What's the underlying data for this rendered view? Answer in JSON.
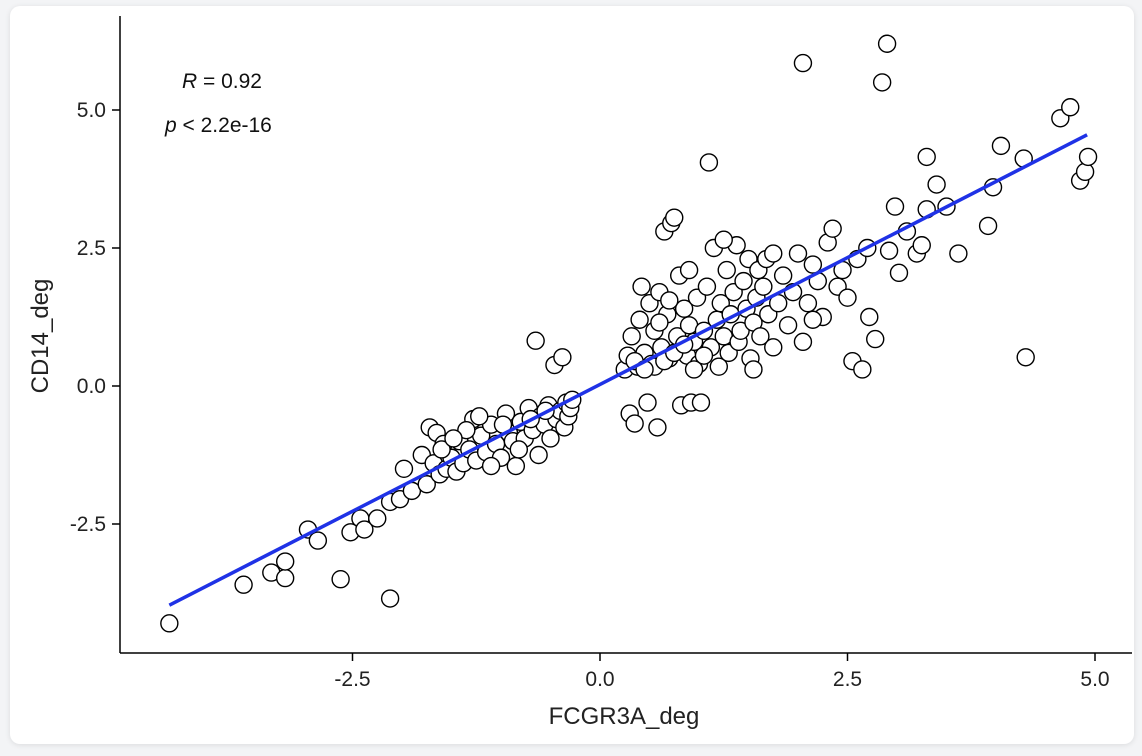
{
  "chart_data": {
    "type": "scatter",
    "xlabel": "FCGR3A_deg",
    "ylabel": "CD14_deg",
    "xlim": [
      -4.5,
      5.2
    ],
    "ylim": [
      -4.8,
      6.5
    ],
    "xticks": [
      -2.5,
      0.0,
      2.5,
      5.0
    ],
    "yticks": [
      -2.5,
      0.0,
      2.5,
      5.0
    ],
    "tick_labels_x": [
      "-2.5",
      "0.0",
      "2.5",
      "5.0"
    ],
    "tick_labels_y": [
      "-2.5",
      "0.0",
      "2.5",
      "5.0"
    ],
    "grid": false,
    "annotation": {
      "r_symbol": "R",
      "r_value": " = 0.92",
      "p_symbol": "p",
      "p_value": " < 2.2e-16"
    },
    "regression": {
      "x": [
        -4.35,
        4.92
      ],
      "y": [
        -3.97,
        4.55
      ],
      "color": "#1f32e6"
    },
    "points": [
      {
        "x": -4.35,
        "y": -4.3
      },
      {
        "x": -3.6,
        "y": -3.6
      },
      {
        "x": -3.32,
        "y": -3.38
      },
      {
        "x": -3.18,
        "y": -3.48
      },
      {
        "x": -3.18,
        "y": -3.18
      },
      {
        "x": -2.95,
        "y": -2.6
      },
      {
        "x": -2.85,
        "y": -2.8
      },
      {
        "x": -2.62,
        "y": -3.5
      },
      {
        "x": -2.52,
        "y": -2.65
      },
      {
        "x": -2.42,
        "y": -2.4
      },
      {
        "x": -2.38,
        "y": -2.6
      },
      {
        "x": -2.25,
        "y": -2.4
      },
      {
        "x": -2.12,
        "y": -3.85
      },
      {
        "x": -2.12,
        "y": -2.1
      },
      {
        "x": -2.02,
        "y": -2.05
      },
      {
        "x": -1.98,
        "y": -1.5
      },
      {
        "x": -1.9,
        "y": -1.9
      },
      {
        "x": -1.8,
        "y": -1.25
      },
      {
        "x": -1.75,
        "y": -1.78
      },
      {
        "x": -1.72,
        "y": -0.75
      },
      {
        "x": -1.68,
        "y": -1.4
      },
      {
        "x": -1.65,
        "y": -0.85
      },
      {
        "x": -1.62,
        "y": -1.6
      },
      {
        "x": -1.58,
        "y": -1.05
      },
      {
        "x": -1.55,
        "y": -1.5
      },
      {
        "x": -1.5,
        "y": -1.3
      },
      {
        "x": -1.45,
        "y": -1.55
      },
      {
        "x": -1.42,
        "y": -1.0
      },
      {
        "x": -1.38,
        "y": -1.4
      },
      {
        "x": -1.32,
        "y": -1.15
      },
      {
        "x": -1.28,
        "y": -0.6
      },
      {
        "x": -1.25,
        "y": -1.35
      },
      {
        "x": -1.2,
        "y": -0.9
      },
      {
        "x": -1.15,
        "y": -1.2
      },
      {
        "x": -1.1,
        "y": -0.7
      },
      {
        "x": -1.05,
        "y": -1.05
      },
      {
        "x": -1.0,
        "y": -1.3
      },
      {
        "x": -0.95,
        "y": -0.5
      },
      {
        "x": -0.92,
        "y": -0.85
      },
      {
        "x": -0.88,
        "y": -1.0
      },
      {
        "x": -0.85,
        "y": -1.45
      },
      {
        "x": -0.8,
        "y": -0.65
      },
      {
        "x": -0.76,
        "y": -0.95
      },
      {
        "x": -0.72,
        "y": -0.4
      },
      {
        "x": -0.68,
        "y": -0.8
      },
      {
        "x": -0.65,
        "y": 0.82
      },
      {
        "x": -0.62,
        "y": -1.25
      },
      {
        "x": -0.6,
        "y": -0.55
      },
      {
        "x": -0.56,
        "y": -0.7
      },
      {
        "x": -0.52,
        "y": -0.35
      },
      {
        "x": -0.5,
        "y": -0.95
      },
      {
        "x": -0.46,
        "y": 0.38
      },
      {
        "x": -0.44,
        "y": -0.6
      },
      {
        "x": -0.4,
        "y": -0.45
      },
      {
        "x": -0.38,
        "y": 0.52
      },
      {
        "x": -0.36,
        "y": -0.75
      },
      {
        "x": -0.34,
        "y": -0.3
      },
      {
        "x": -0.32,
        "y": -0.55
      },
      {
        "x": -0.3,
        "y": -0.4
      },
      {
        "x": -0.28,
        "y": -0.25
      },
      {
        "x": -1.35,
        "y": -0.8
      },
      {
        "x": -1.1,
        "y": -1.45
      },
      {
        "x": -0.98,
        "y": -0.7
      },
      {
        "x": -0.82,
        "y": -1.15
      },
      {
        "x": -0.7,
        "y": -0.6
      },
      {
        "x": -0.55,
        "y": -0.45
      },
      {
        "x": -1.6,
        "y": -1.15
      },
      {
        "x": -1.48,
        "y": -0.95
      },
      {
        "x": -1.22,
        "y": -0.55
      },
      {
        "x": 0.25,
        "y": 0.3
      },
      {
        "x": 0.28,
        "y": 0.55
      },
      {
        "x": 0.3,
        "y": -0.5
      },
      {
        "x": 0.32,
        "y": 0.9
      },
      {
        "x": 0.35,
        "y": -0.68
      },
      {
        "x": 0.38,
        "y": 0.35
      },
      {
        "x": 0.4,
        "y": 1.2
      },
      {
        "x": 0.42,
        "y": 1.8
      },
      {
        "x": 0.45,
        "y": 0.6
      },
      {
        "x": 0.48,
        "y": -0.3
      },
      {
        "x": 0.5,
        "y": 1.5
      },
      {
        "x": 0.52,
        "y": 0.4
      },
      {
        "x": 0.55,
        "y": 1.0
      },
      {
        "x": 0.58,
        "y": -0.75
      },
      {
        "x": 0.6,
        "y": 1.7
      },
      {
        "x": 0.62,
        "y": 0.7
      },
      {
        "x": 0.65,
        "y": 2.8
      },
      {
        "x": 0.68,
        "y": 1.3
      },
      {
        "x": 0.7,
        "y": 0.5
      },
      {
        "x": 0.72,
        "y": 2.95
      },
      {
        "x": 0.75,
        "y": 3.05
      },
      {
        "x": 0.78,
        "y": 0.9
      },
      {
        "x": 0.8,
        "y": 2.0
      },
      {
        "x": 0.82,
        "y": -0.35
      },
      {
        "x": 0.85,
        "y": 1.4
      },
      {
        "x": 0.88,
        "y": 0.55
      },
      {
        "x": 0.9,
        "y": 1.1
      },
      {
        "x": 0.92,
        "y": -0.3
      },
      {
        "x": 0.95,
        "y": 0.8
      },
      {
        "x": 0.98,
        "y": 1.6
      },
      {
        "x": 1.0,
        "y": 0.4
      },
      {
        "x": 1.02,
        "y": -0.3
      },
      {
        "x": 1.05,
        "y": 1.0
      },
      {
        "x": 1.08,
        "y": 1.8
      },
      {
        "x": 1.1,
        "y": 4.05
      },
      {
        "x": 1.12,
        "y": 0.7
      },
      {
        "x": 1.15,
        "y": 2.5
      },
      {
        "x": 1.18,
        "y": 1.2
      },
      {
        "x": 1.2,
        "y": 0.35
      },
      {
        "x": 1.22,
        "y": 1.5
      },
      {
        "x": 1.25,
        "y": 0.9
      },
      {
        "x": 1.28,
        "y": 2.1
      },
      {
        "x": 1.3,
        "y": 0.6
      },
      {
        "x": 1.32,
        "y": 1.3
      },
      {
        "x": 1.35,
        "y": 1.7
      },
      {
        "x": 1.38,
        "y": 2.55
      },
      {
        "x": 1.4,
        "y": 0.8
      },
      {
        "x": 1.42,
        "y": 1.0
      },
      {
        "x": 1.45,
        "y": 1.9
      },
      {
        "x": 1.48,
        "y": 1.4
      },
      {
        "x": 1.5,
        "y": 2.3
      },
      {
        "x": 1.52,
        "y": 0.5
      },
      {
        "x": 1.55,
        "y": 1.15
      },
      {
        "x": 1.58,
        "y": 1.6
      },
      {
        "x": 1.6,
        "y": 2.1
      },
      {
        "x": 1.62,
        "y": 0.9
      },
      {
        "x": 1.65,
        "y": 1.8
      },
      {
        "x": 1.68,
        "y": 2.3
      },
      {
        "x": 1.7,
        "y": 1.3
      },
      {
        "x": 1.75,
        "y": 0.7
      },
      {
        "x": 1.8,
        "y": 1.5
      },
      {
        "x": 1.85,
        "y": 2.0
      },
      {
        "x": 1.9,
        "y": 1.1
      },
      {
        "x": 1.95,
        "y": 1.7
      },
      {
        "x": 2.0,
        "y": 2.4
      },
      {
        "x": 2.05,
        "y": 0.8
      },
      {
        "x": 2.05,
        "y": 5.85
      },
      {
        "x": 2.1,
        "y": 1.5
      },
      {
        "x": 2.15,
        "y": 2.2
      },
      {
        "x": 2.2,
        "y": 1.9
      },
      {
        "x": 2.25,
        "y": 1.25
      },
      {
        "x": 2.3,
        "y": 2.6
      },
      {
        "x": 2.35,
        "y": 2.85
      },
      {
        "x": 2.4,
        "y": 1.8
      },
      {
        "x": 2.45,
        "y": 2.1
      },
      {
        "x": 2.5,
        "y": 1.6
      },
      {
        "x": 2.55,
        "y": 0.45
      },
      {
        "x": 2.6,
        "y": 2.3
      },
      {
        "x": 2.65,
        "y": 0.3
      },
      {
        "x": 2.7,
        "y": 2.5
      },
      {
        "x": 2.72,
        "y": 1.25
      },
      {
        "x": 2.78,
        "y": 0.85
      },
      {
        "x": 2.85,
        "y": 5.5
      },
      {
        "x": 2.9,
        "y": 6.2
      },
      {
        "x": 2.92,
        "y": 2.45
      },
      {
        "x": 2.98,
        "y": 3.25
      },
      {
        "x": 3.02,
        "y": 2.05
      },
      {
        "x": 3.1,
        "y": 2.8
      },
      {
        "x": 3.2,
        "y": 2.4
      },
      {
        "x": 3.25,
        "y": 2.55
      },
      {
        "x": 3.3,
        "y": 4.15
      },
      {
        "x": 3.3,
        "y": 3.2
      },
      {
        "x": 3.4,
        "y": 3.65
      },
      {
        "x": 3.5,
        "y": 3.25
      },
      {
        "x": 3.62,
        "y": 2.4
      },
      {
        "x": 3.92,
        "y": 2.9
      },
      {
        "x": 3.97,
        "y": 3.6
      },
      {
        "x": 4.05,
        "y": 4.35
      },
      {
        "x": 4.28,
        "y": 4.12
      },
      {
        "x": 4.3,
        "y": 0.52
      },
      {
        "x": 4.65,
        "y": 4.85
      },
      {
        "x": 4.75,
        "y": 5.05
      },
      {
        "x": 4.85,
        "y": 3.72
      },
      {
        "x": 4.9,
        "y": 3.88
      },
      {
        "x": 4.93,
        "y": 4.15
      },
      {
        "x": 0.55,
        "y": 0.35
      },
      {
        "x": 0.65,
        "y": 0.45
      },
      {
        "x": 0.75,
        "y": 0.6
      },
      {
        "x": 0.85,
        "y": 0.75
      },
      {
        "x": 0.95,
        "y": 0.3
      },
      {
        "x": 1.05,
        "y": 0.55
      },
      {
        "x": 0.35,
        "y": 0.45
      },
      {
        "x": 0.45,
        "y": 0.3
      },
      {
        "x": 0.6,
        "y": 1.15
      },
      {
        "x": 0.7,
        "y": 1.55
      },
      {
        "x": 0.9,
        "y": 2.1
      },
      {
        "x": 1.25,
        "y": 2.65
      },
      {
        "x": 1.55,
        "y": 0.3
      },
      {
        "x": 1.75,
        "y": 2.4
      },
      {
        "x": 2.15,
        "y": 1.2
      }
    ]
  }
}
